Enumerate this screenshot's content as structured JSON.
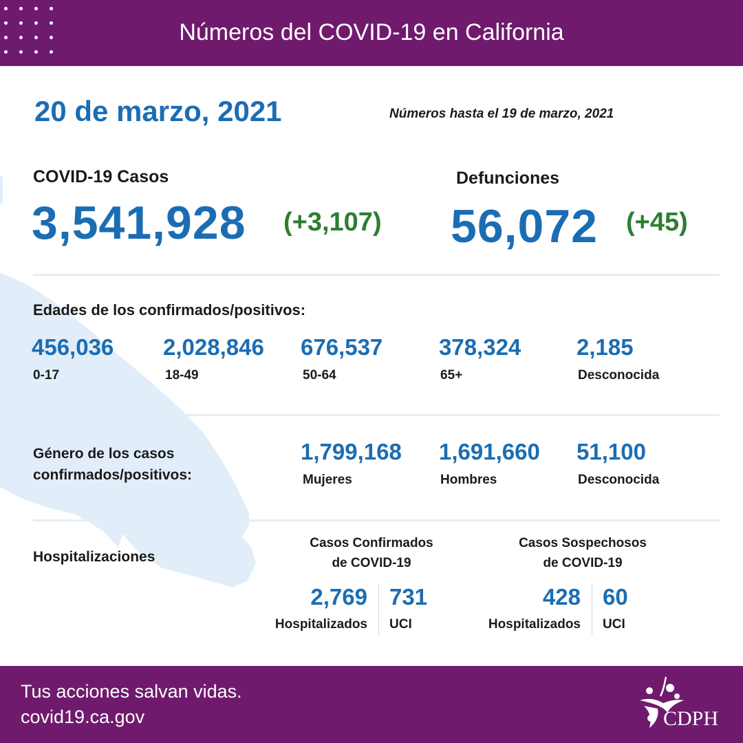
{
  "header": {
    "title": "Números del COVID-19 en California"
  },
  "date": "20 de marzo, 2021",
  "as_of": "Números hasta el 19 de marzo, 2021",
  "cases": {
    "label": "COVID-19 Casos",
    "value": "3,541,928",
    "change": "(+3,107)"
  },
  "deaths": {
    "label": "Defunciones",
    "value": "56,072",
    "change": "(+45)"
  },
  "ages": {
    "title": "Edades de los confirmados/positivos:",
    "groups": [
      {
        "value": "456,036",
        "label": "0-17"
      },
      {
        "value": "2,028,846",
        "label": "18-49"
      },
      {
        "value": "676,537",
        "label": "50-64"
      },
      {
        "value": "378,324",
        "label": "65+"
      },
      {
        "value": "2,185",
        "label": "Desconocida"
      }
    ]
  },
  "gender": {
    "title_line1": "Género de los casos",
    "title_line2": "confirmados/positivos:",
    "groups": [
      {
        "value": "1,799,168",
        "label": "Mujeres"
      },
      {
        "value": "1,691,660",
        "label": "Hombres"
      },
      {
        "value": "51,100",
        "label": "Desconocida"
      }
    ]
  },
  "hospital": {
    "title": "Hospitalizaciones",
    "confirmed": {
      "title_line1": "Casos Confirmados",
      "title_line2": "de COVID-19",
      "hosp_value": "2,769",
      "hosp_label": "Hospitalizados",
      "icu_value": "731",
      "icu_label": "UCI"
    },
    "suspected": {
      "title_line1": "Casos Sospechosos",
      "title_line2": "de COVID-19",
      "hosp_value": "428",
      "hosp_label": "Hospitalizados",
      "icu_value": "60",
      "icu_label": "UCI"
    }
  },
  "footer": {
    "tagline": "Tus acciones salvan vidas.",
    "url": "covid19.ca.gov",
    "logo_text": "CDPH"
  },
  "colors": {
    "purple": "#701a6e",
    "blue": "#1b6db3",
    "green": "#2e7d32",
    "map": "#e1eef9"
  }
}
